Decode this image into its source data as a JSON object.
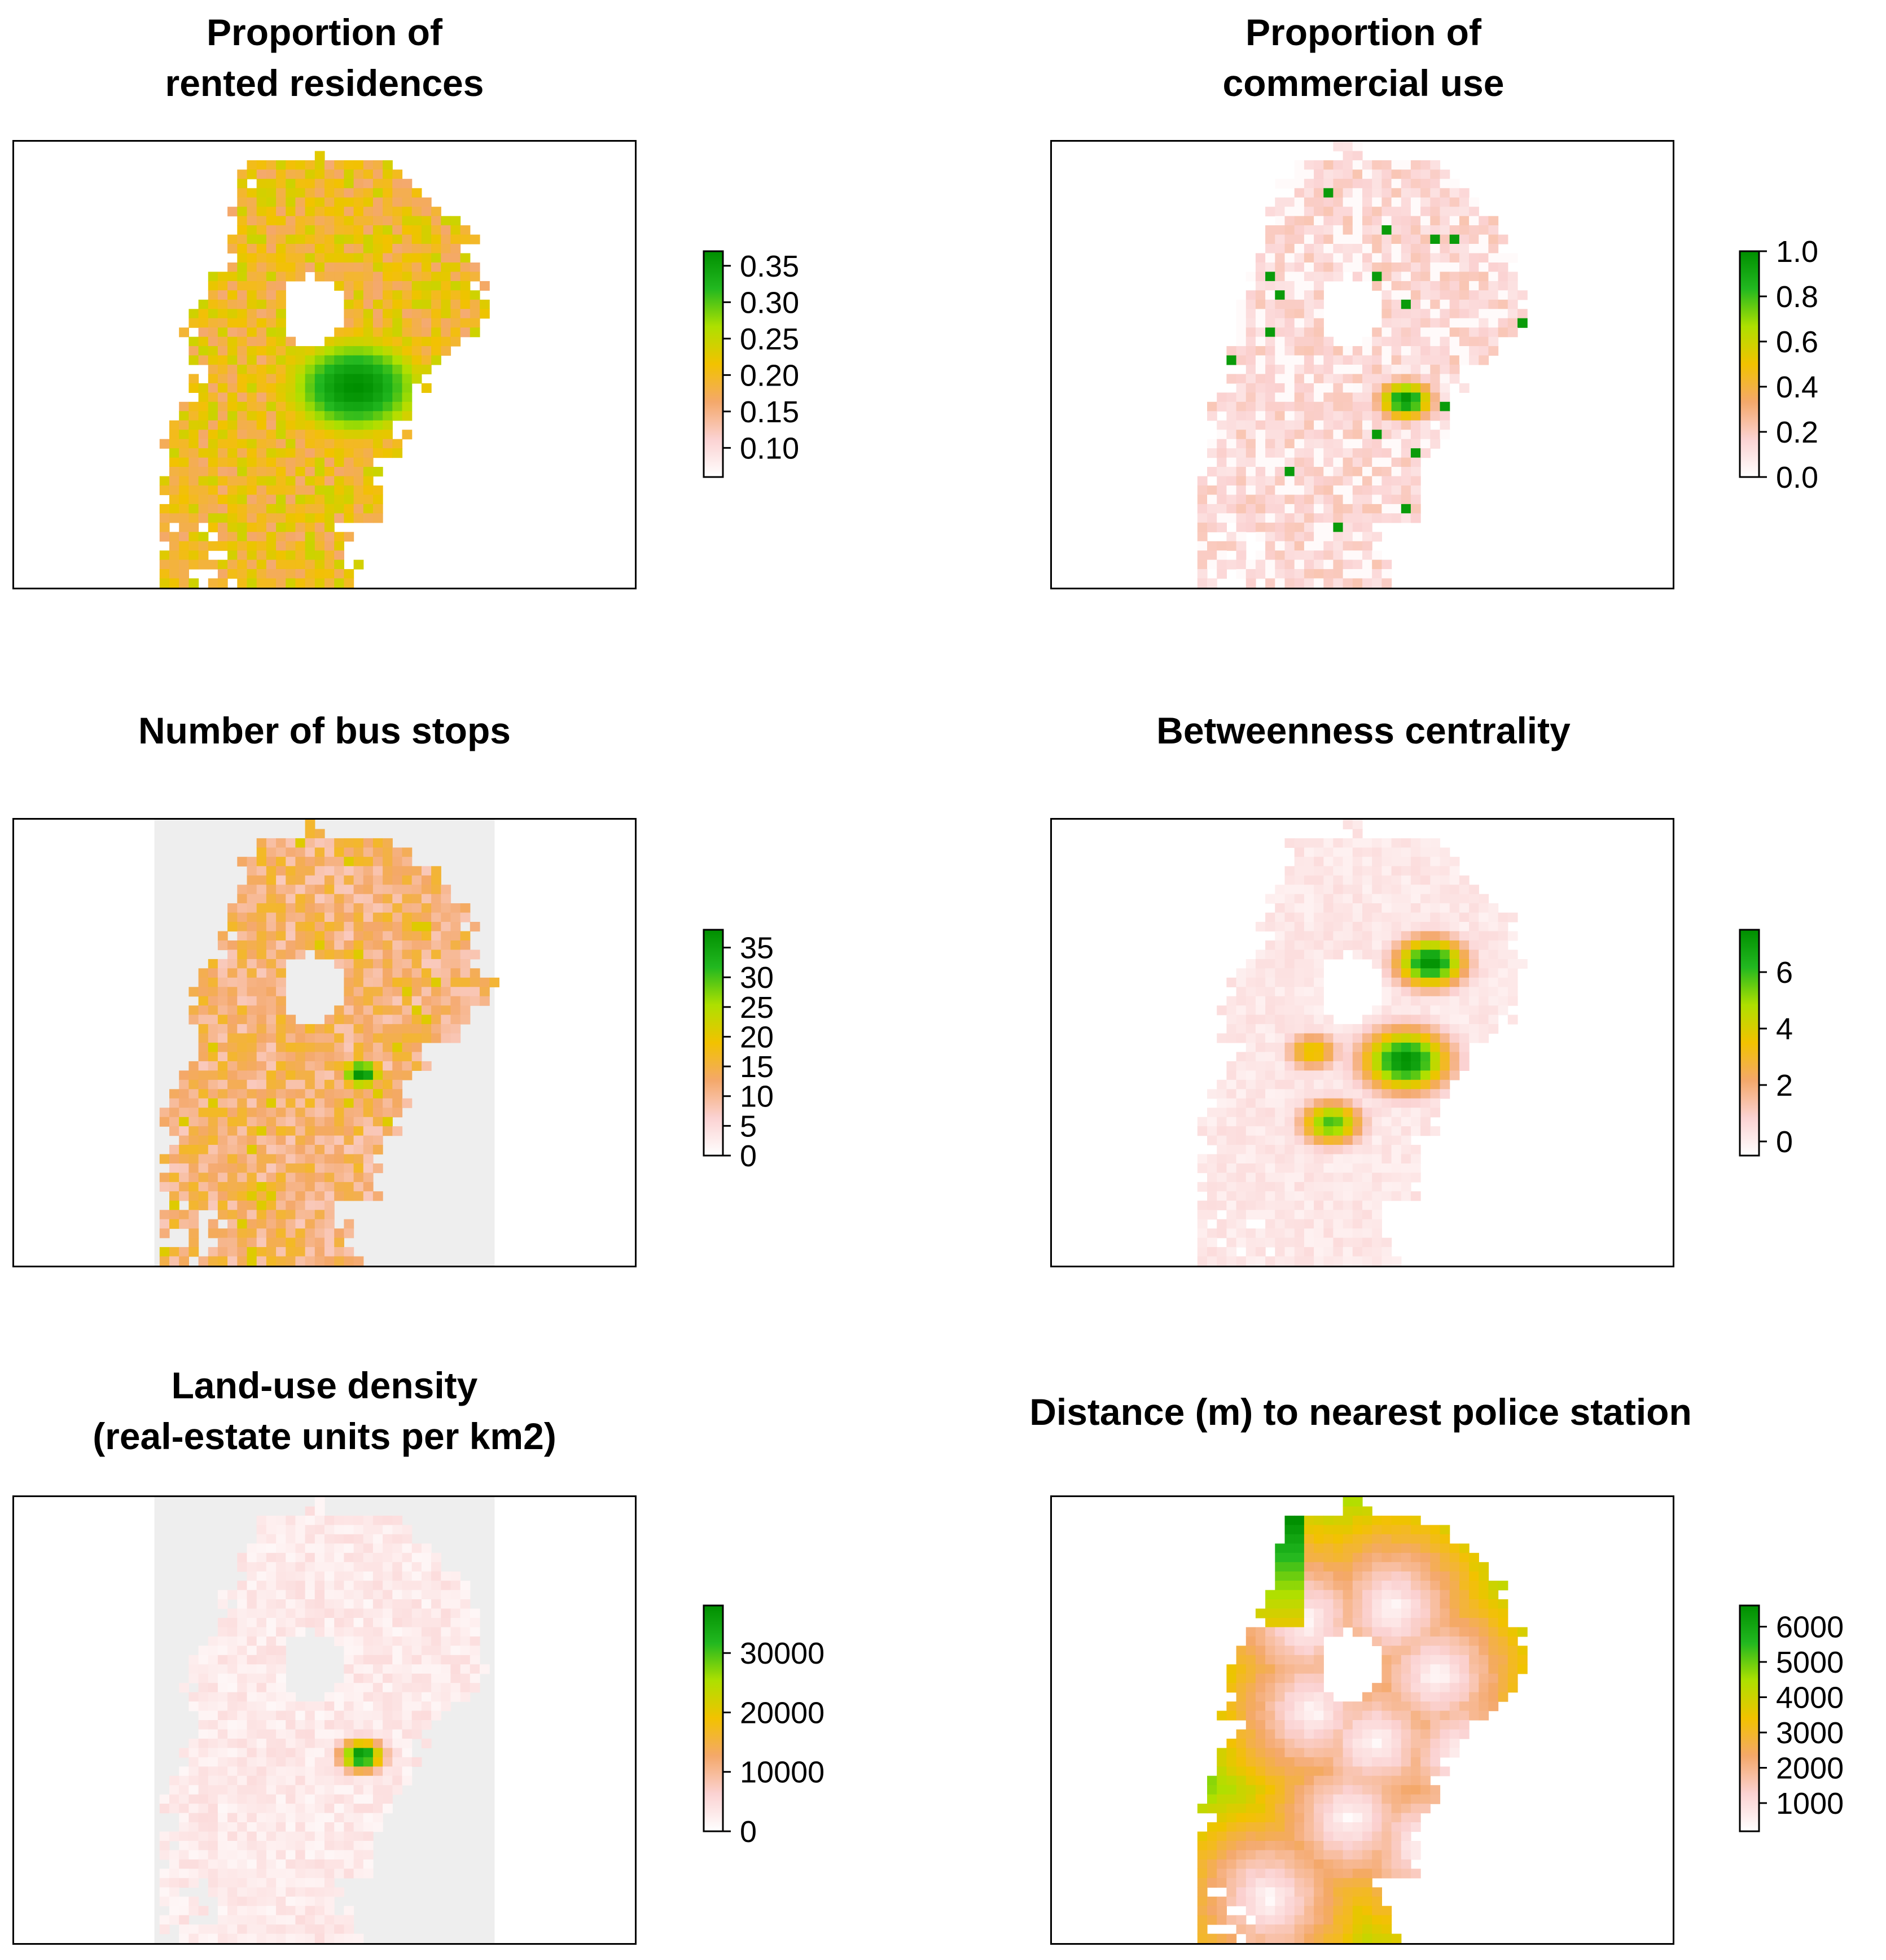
{
  "colors": {
    "ramp": [
      "#ffffff",
      "#fbd2d2",
      "#f4a86a",
      "#f2c200",
      "#aee000",
      "#22b820",
      "#008f00"
    ],
    "gray_background": "#eeeeee",
    "frame": "#000000"
  },
  "chart_data": [
    {
      "type": "heatmap",
      "id": "rented",
      "title_lines": [
        "Proportion of",
        "rented residences"
      ],
      "legend": {
        "min": 0.06,
        "max": 0.37,
        "ticks": [
          "0.35",
          "0.30",
          "0.25",
          "0.20",
          "0.15",
          "0.10"
        ],
        "tick_values": [
          0.35,
          0.3,
          0.25,
          0.2,
          0.15,
          0.1
        ]
      },
      "spatial_pattern": "city-shaped raster, mostly 0.15-0.25 with a hot spot of ~0.35 in the center-right"
    },
    {
      "type": "heatmap",
      "id": "commercial",
      "title_lines": [
        "Proportion of",
        "commercial use"
      ],
      "legend": {
        "min": 0.0,
        "max": 1.0,
        "ticks": [
          "1.0",
          "0.8",
          "0.6",
          "0.4",
          "0.2",
          "0.0"
        ],
        "tick_values": [
          1.0,
          0.8,
          0.6,
          0.4,
          0.2,
          0.0
        ]
      },
      "spatial_pattern": "mostly 0.0-0.2, scattered cells near 1.0"
    },
    {
      "type": "heatmap",
      "id": "busstops",
      "title_lines": [
        "Number of bus stops"
      ],
      "legend": {
        "min": 0,
        "max": 38,
        "ticks": [
          "35",
          "30",
          "25",
          "20",
          "15",
          "10",
          "5",
          "0"
        ],
        "tick_values": [
          35,
          30,
          25,
          20,
          15,
          10,
          5,
          0
        ]
      },
      "spatial_pattern": "mostly 5-15 with a few cells ~35 near center"
    },
    {
      "type": "heatmap",
      "id": "betweenness",
      "title_lines": [
        "Betweenness centrality"
      ],
      "legend": {
        "min": -0.5,
        "max": 7.5,
        "ticks": [
          "6",
          "4",
          "2",
          "0"
        ],
        "tick_values": [
          6,
          4,
          2,
          0
        ]
      },
      "spatial_pattern": "smooth field, peaks of ~7 at three hot spots"
    },
    {
      "type": "heatmap",
      "id": "landuse",
      "title_lines": [
        "Land-use density",
        "(real-estate units per km2)"
      ],
      "legend": {
        "min": 0,
        "max": 38000,
        "ticks": [
          "30000",
          "20000",
          "10000",
          "0"
        ],
        "tick_values": [
          30000,
          20000,
          10000,
          0
        ]
      },
      "spatial_pattern": "mostly below 5000, single peak ~38000 near center"
    },
    {
      "type": "heatmap",
      "id": "police",
      "title_lines": [
        "Distance (m) to nearest police station"
      ],
      "legend": {
        "min": 200,
        "max": 6600,
        "ticks": [
          "6000",
          "5000",
          "4000",
          "3000",
          "2000",
          "1000"
        ],
        "tick_values": [
          6000,
          5000,
          4000,
          3000,
          2000,
          1000
        ]
      },
      "spatial_pattern": "radial low values around stations, high values at outer edges"
    }
  ]
}
